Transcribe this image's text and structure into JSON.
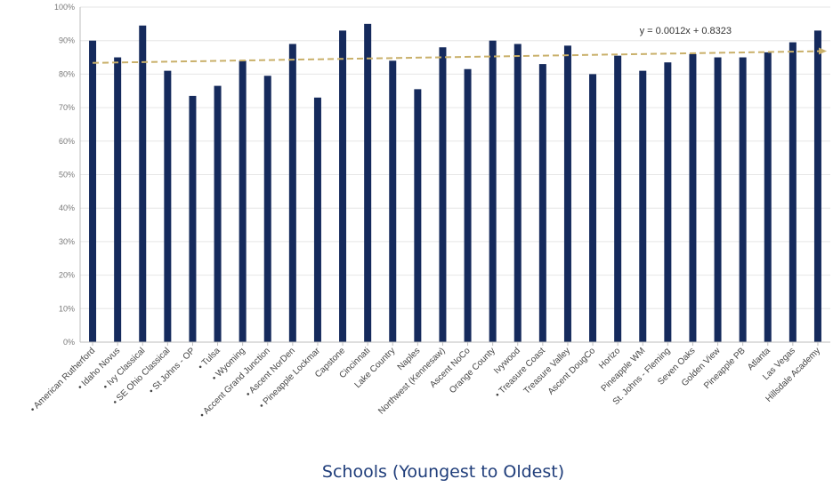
{
  "chart_data": {
    "type": "bar",
    "xlabel": "Schools (Youngest to Oldest)",
    "ylabel": "",
    "ylim": [
      0,
      100
    ],
    "ytick_format": "%",
    "yticks": [
      0,
      10,
      20,
      30,
      40,
      50,
      60,
      70,
      80,
      90,
      100
    ],
    "grid": true,
    "categories": [
      "• American Rutherford",
      "• Idaho Novus",
      "• Ivy Classical",
      "• SE Ohio Classical",
      "• St Johns - OP",
      "• Tulsa",
      "• Wyoming",
      "• Accent Grand Junction",
      "• Ascent NorDen",
      "• Pineapple Lockmar",
      "Capstone",
      "Cincinnati",
      "Lake Country",
      "Naples",
      "Northwest (Kennesaw)",
      "Ascent NoCo",
      "Orange County",
      "Ivywood",
      "• Treasure Coast",
      "Treasure Valley",
      "Ascent DougCo",
      "Horizo",
      "Pineapple WM",
      "St. Johns - Fleming",
      "Seven Oaks",
      "Golden View",
      "Pineapple PB",
      "Atlanta",
      "Las Vegas",
      "Hillsdale Academy"
    ],
    "values": [
      90,
      85,
      94.5,
      81,
      73.5,
      76.5,
      84,
      79.5,
      89,
      73,
      93,
      95,
      84,
      75.5,
      88,
      81.5,
      90,
      89,
      83,
      88.5,
      80,
      85.5,
      81,
      83.5,
      86,
      85,
      85,
      86.5,
      89.5,
      93
    ],
    "bar_color": "#152a5c",
    "trendline": {
      "label": "y = 0.0012x + 0.8323",
      "slope": 0.12,
      "intercept": 83.23,
      "color": "#c9b06a"
    }
  }
}
